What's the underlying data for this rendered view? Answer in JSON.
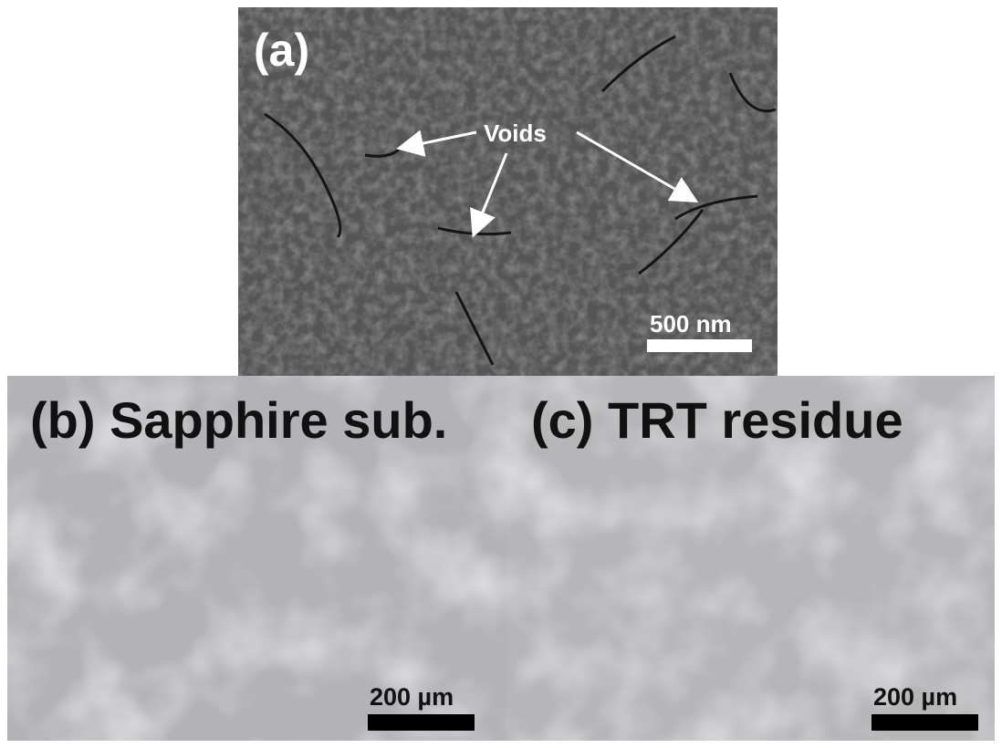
{
  "panels": [
    {
      "label": "(a)",
      "annotation": "Voids",
      "scale": "500 nm"
    },
    {
      "label": "(b) Sapphire sub.",
      "scale": "200 µm"
    },
    {
      "label": "(c) TRT residue",
      "scale": "200 µm"
    }
  ]
}
